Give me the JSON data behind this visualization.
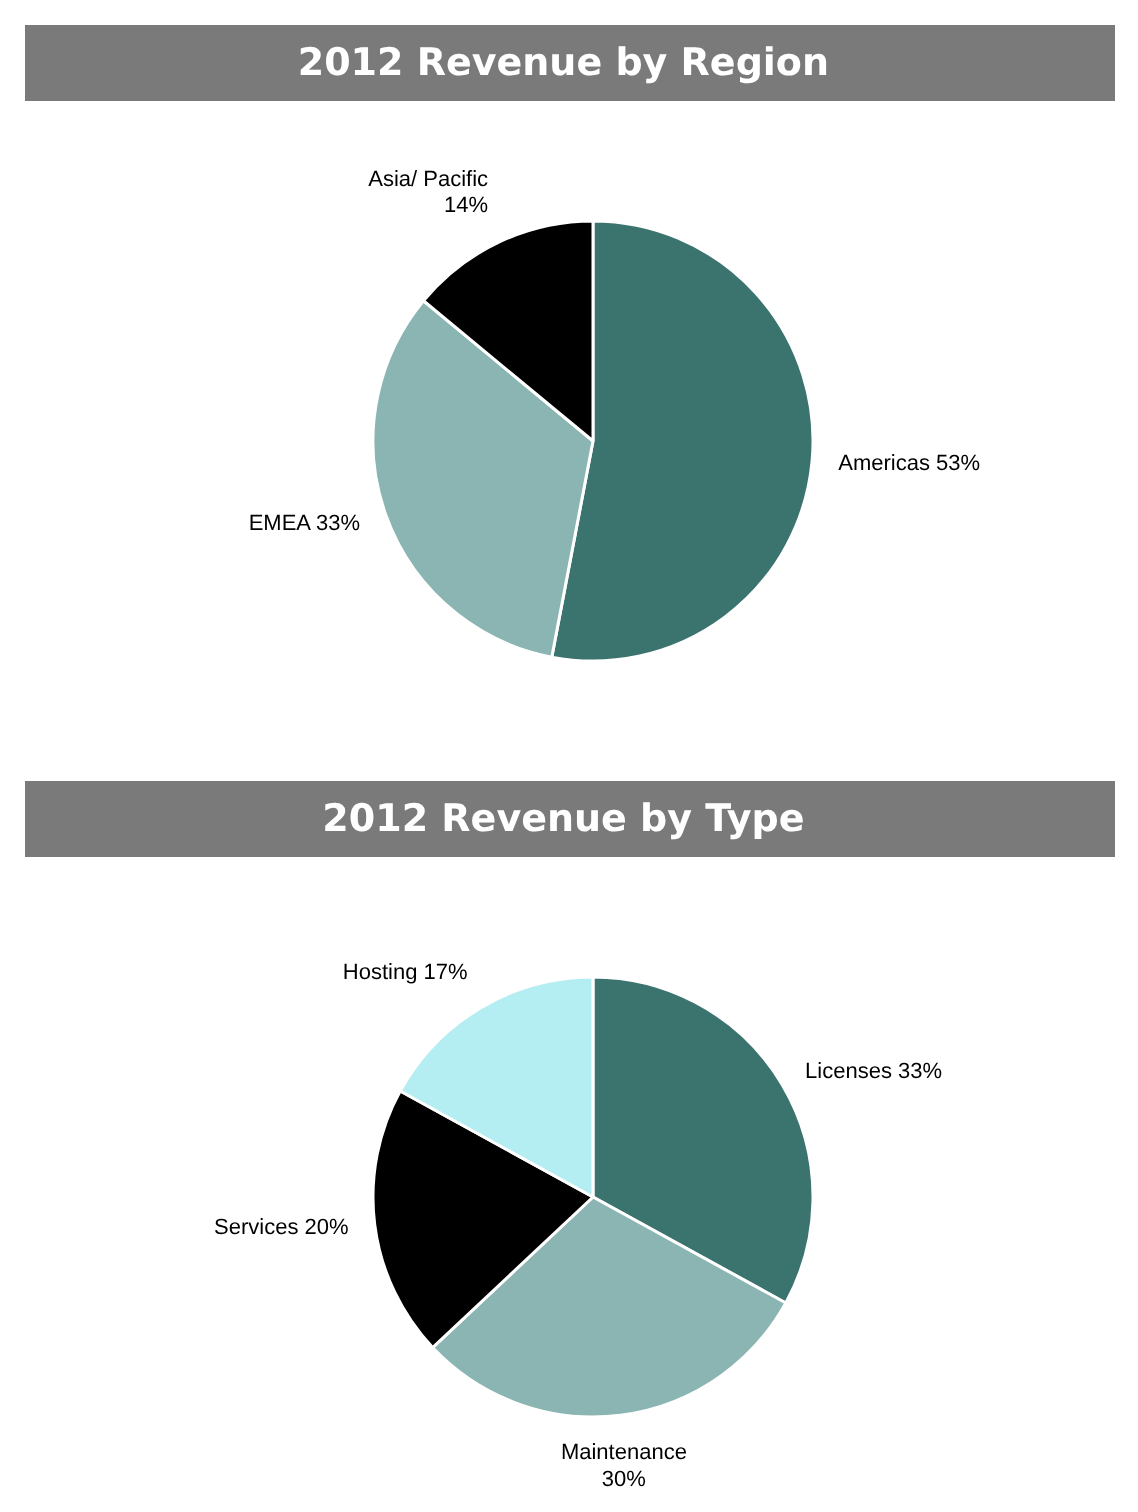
{
  "chart_data": [
    {
      "type": "pie",
      "title": "2012  Revenue by Region",
      "categories": [
        "Americas",
        "EMEA",
        "Asia/ Pacific"
      ],
      "values": [
        53,
        33,
        14
      ],
      "colors": [
        "#3b736f",
        "#8bb5b2",
        "#000000"
      ],
      "value_labels": [
        "53%",
        "33%",
        "14%"
      ]
    },
    {
      "type": "pie",
      "title": "2012  Revenue by Type",
      "categories": [
        "Licenses",
        "Maintenance",
        "Services",
        "Hosting"
      ],
      "values": [
        33,
        30,
        20,
        17
      ],
      "colors": [
        "#3b736f",
        "#8bb5b2",
        "#000000",
        "#b5eef2"
      ],
      "value_labels": [
        "33%",
        "30%",
        "20%",
        "17%"
      ]
    }
  ]
}
